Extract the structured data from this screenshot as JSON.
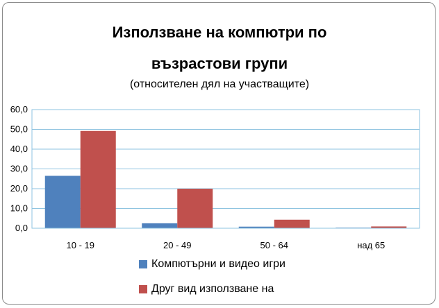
{
  "chart_data": {
    "type": "bar",
    "title_line1": "Използване на компютри по",
    "title_line2": "възрастови групи",
    "subtitle": "(относителен дял на участващите)",
    "categories": [
      "10 - 19",
      "20 - 49",
      "50 - 64",
      "над 65"
    ],
    "series": [
      {
        "name": "Компютърни  и видео игри",
        "color": "#4f81bd",
        "values": [
          26.5,
          2.5,
          0.8,
          0.3
        ]
      },
      {
        "name": "Друг вид използване на",
        "color": "#c0504d",
        "values": [
          49.2,
          20.0,
          4.3,
          0.9
        ]
      }
    ],
    "ylim": [
      0,
      60
    ],
    "yticks": [
      "0,0",
      "10,0",
      "20,0",
      "30,0",
      "40,0",
      "50,0",
      "60,0"
    ],
    "grid": true,
    "legend_position": "bottom"
  }
}
